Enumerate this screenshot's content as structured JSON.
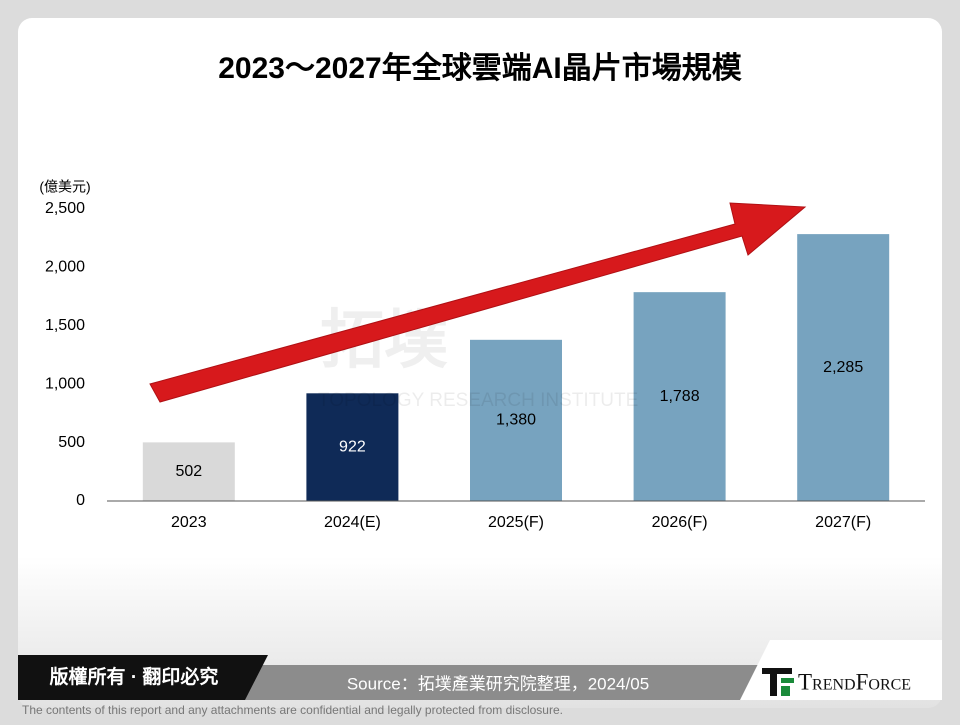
{
  "chart_data": {
    "type": "bar",
    "title": "2023～2027年全球雲端AI晶片市場規模",
    "y_unit": "(億美元)",
    "categories": [
      "2023",
      "2024(E)",
      "2025(F)",
      "2026(F)",
      "2027(F)"
    ],
    "values": [
      502,
      922,
      1380,
      1788,
      2285
    ],
    "value_labels": [
      "502",
      "922",
      "1,380",
      "1,788",
      "2,285"
    ],
    "colors": [
      "#d9d9d9",
      "#0f2a57",
      "#77a3bf",
      "#77a3bf",
      "#77a3bf"
    ],
    "label_colors": [
      "#000000",
      "#ffffff",
      "#000000",
      "#000000",
      "#000000"
    ],
    "ylim": [
      0,
      2500
    ],
    "yticks": [
      0,
      500,
      {
        "value": 1000,
        "label": "1,000"
      },
      {
        "value": 1500,
        "label": "1,500"
      },
      {
        "value": 2000,
        "label": "2,000"
      },
      {
        "value": 2500,
        "label": "2,500"
      }
    ],
    "grid": false
  },
  "watermark": {
    "logo": "拓墣",
    "text": "TOPOLOGY RESEARCH INSTITUTE"
  },
  "footer": {
    "copyright": "版權所有 · 翻印必究",
    "source": "Source：拓墣產業研究院整理，2024/05",
    "logo": "TrendForce",
    "disclaimer": "The contents of this report and any attachments are confidential and legally protected from disclosure."
  }
}
